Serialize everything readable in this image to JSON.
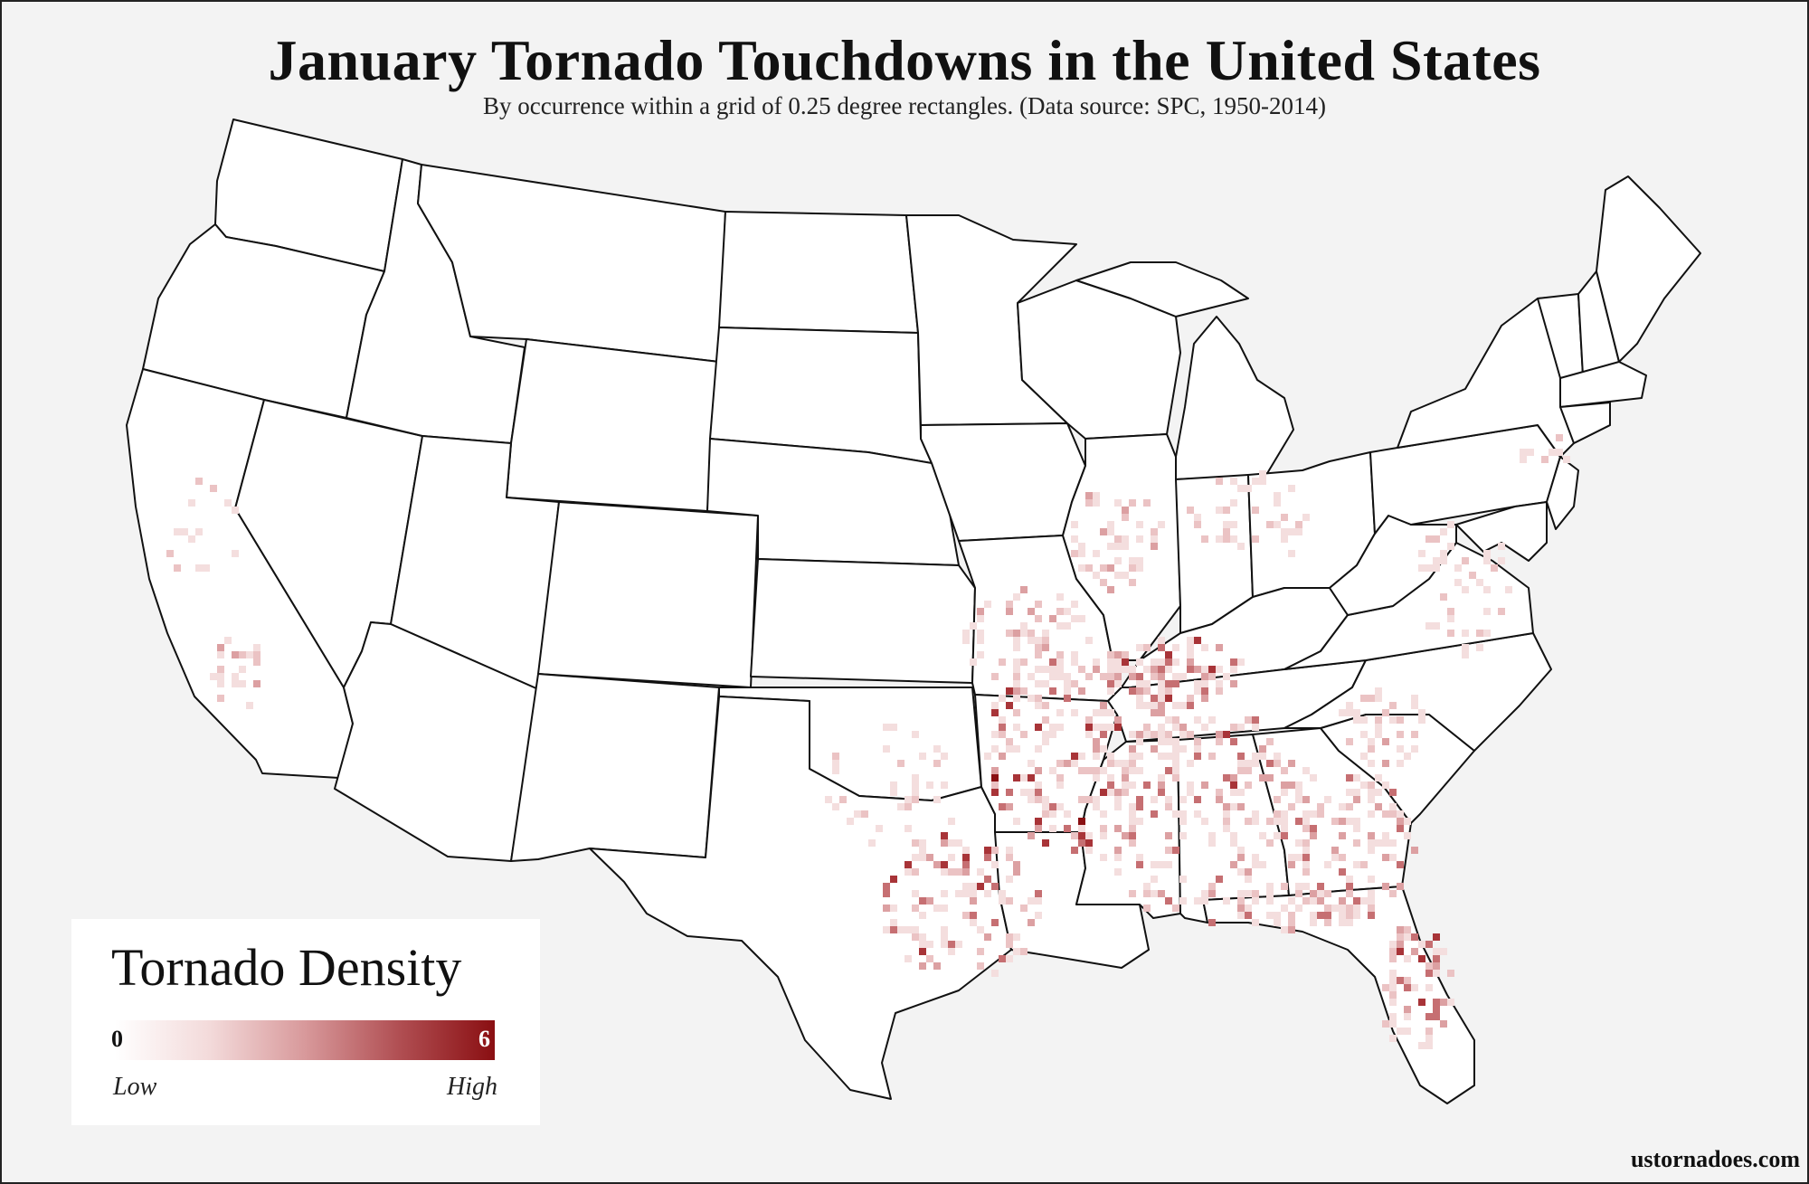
{
  "header": {
    "title": "January Tornado Touchdowns in the United States",
    "subtitle": "By occurrence within a grid of 0.25 degree rectangles. (Data source: SPC, 1950-2014)"
  },
  "legend": {
    "title": "Tornado Density",
    "min_label": "0",
    "max_label": "6",
    "low_label": "Low",
    "high_label": "High",
    "colors": [
      "#ffffff",
      "#f3dada",
      "#d8999b",
      "#b04e52",
      "#8a0f12"
    ]
  },
  "credit": "ustornadoes.com",
  "map_style": {
    "background": "#f3f3f3",
    "land": "#ffffff",
    "border": "#111111"
  }
}
